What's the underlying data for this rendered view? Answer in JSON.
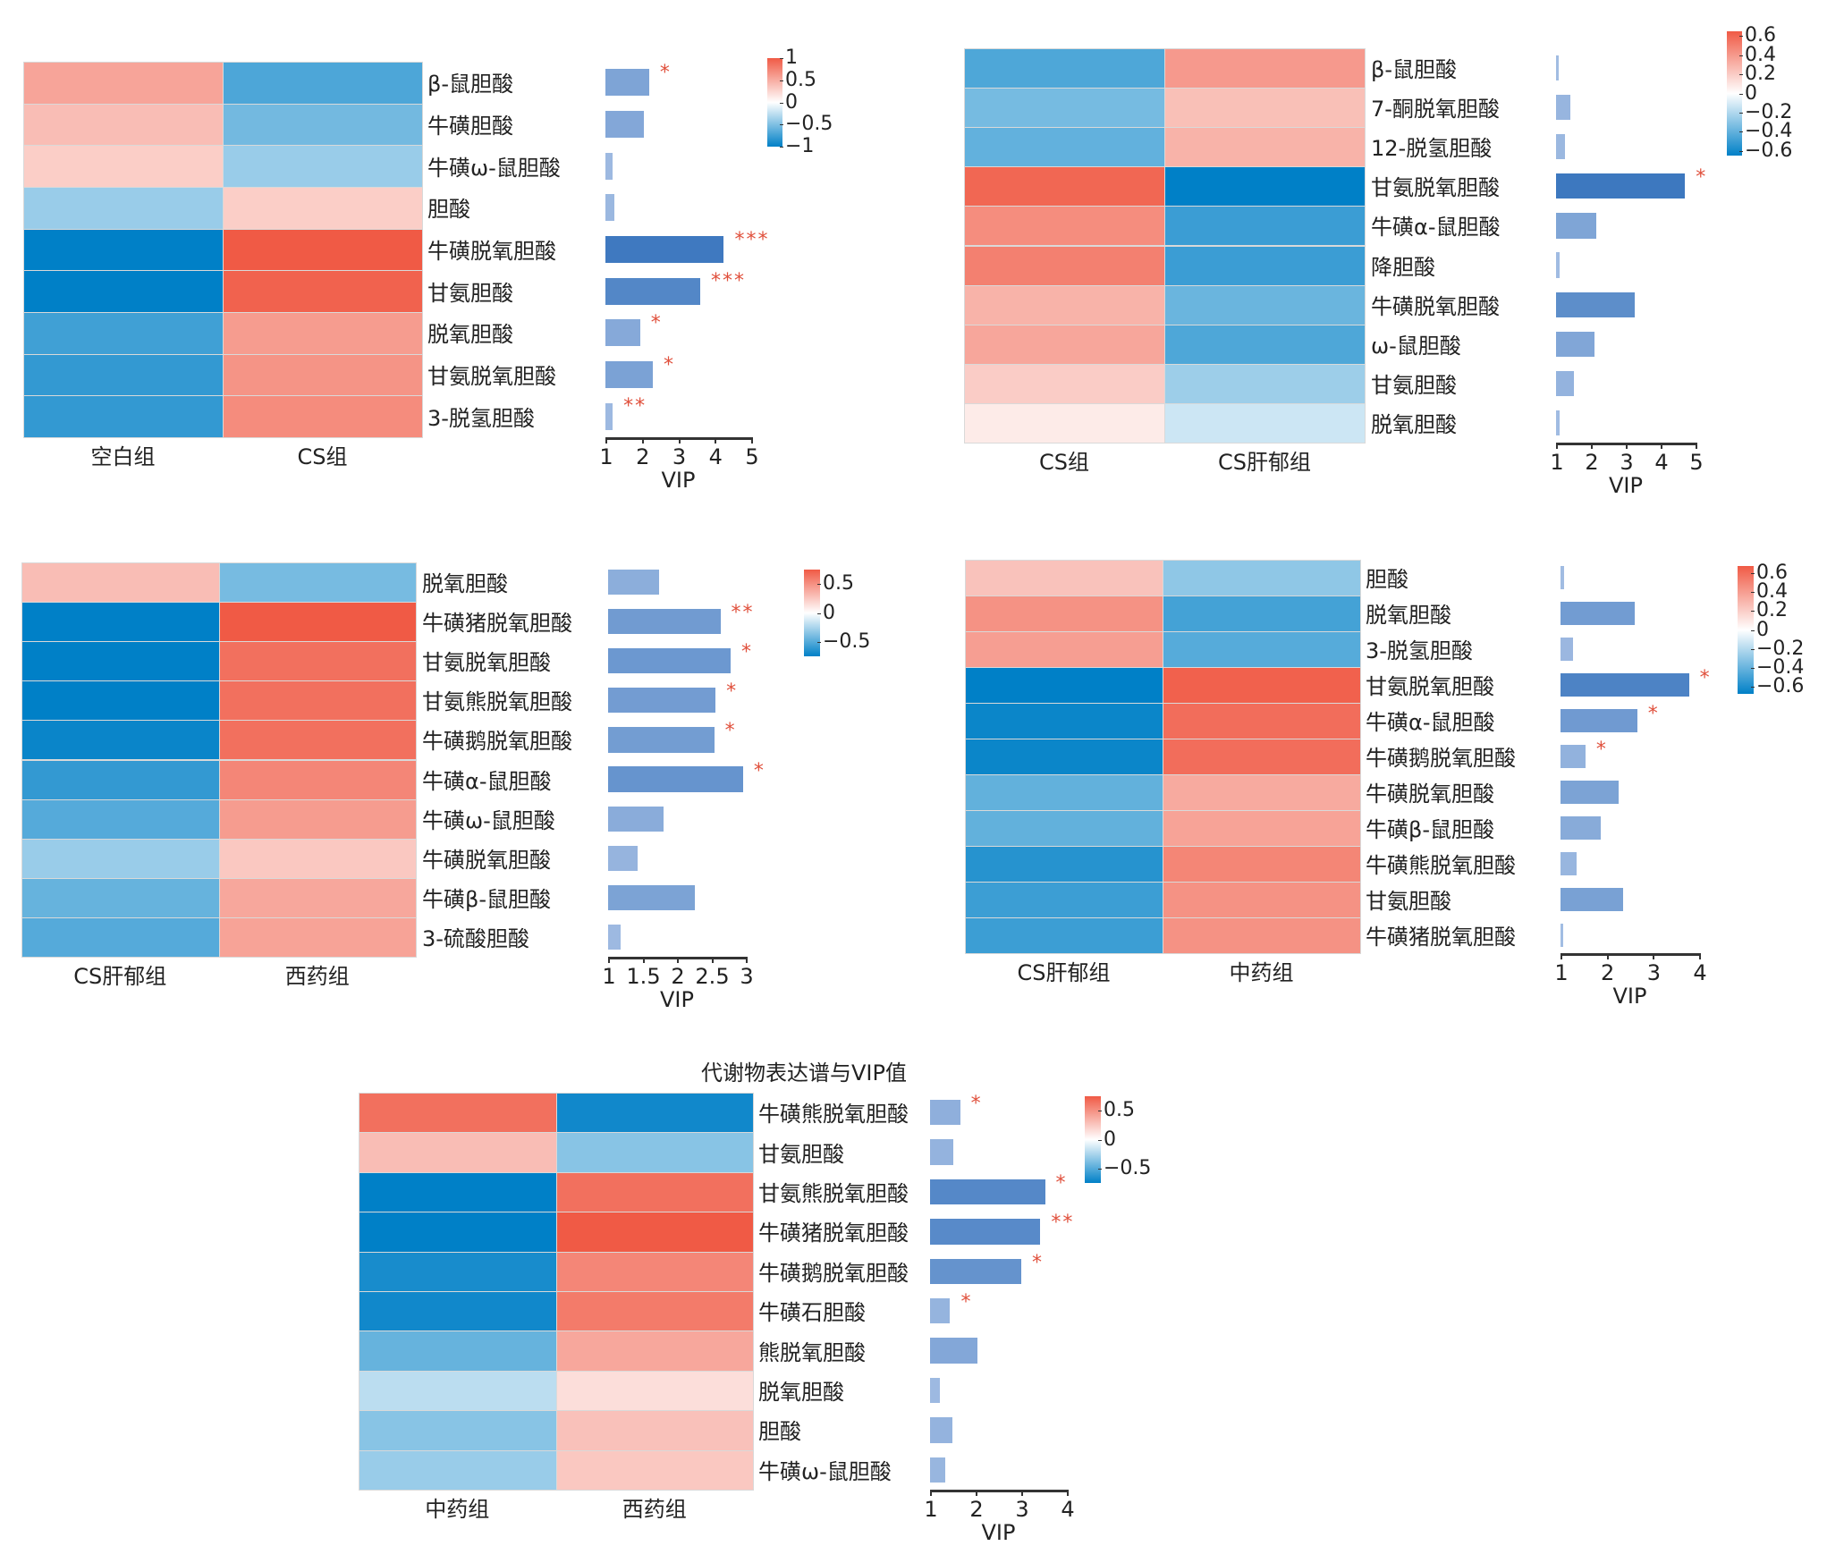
{
  "colors": {
    "high": "#F05A45",
    "mid": "#FFFFFF",
    "low": "#0080C7",
    "bar_light": "#A3BDE3",
    "bar_dark": "#3D78BF",
    "sig": "#E0503C"
  },
  "chart_data": [
    {
      "type": "heatmap",
      "title": "",
      "groups": [
        "空白组",
        "CS组"
      ],
      "colorbar": {
        "min": -1,
        "max": 1,
        "ticks": [
          1,
          0.5,
          0,
          -0.5,
          -1
        ],
        "tick_labels": [
          "1",
          "0.5",
          "0",
          "−0.5",
          "−1"
        ]
      },
      "vip_axis": {
        "label": "VIP",
        "min": 1,
        "max": 5,
        "ticks": [
          "1",
          "2",
          "3",
          "4",
          "5"
        ]
      },
      "rows": [
        {
          "name": "β-鼠胆酸",
          "values": [
            0.55,
            -0.7
          ],
          "vip": 2.2,
          "sig": "*"
        },
        {
          "name": "牛磺胆酸",
          "values": [
            0.4,
            -0.55
          ],
          "vip": 2.05,
          "sig": ""
        },
        {
          "name": "牛磺ω-鼠胆酸",
          "values": [
            0.3,
            -0.4
          ],
          "vip": 1.2,
          "sig": ""
        },
        {
          "name": "胆酸",
          "values": [
            -0.4,
            0.3
          ],
          "vip": 1.25,
          "sig": ""
        },
        {
          "name": "牛磺脱氧胆酸",
          "values": [
            -1,
            1
          ],
          "vip": 4.25,
          "sig": "***"
        },
        {
          "name": "甘氨胆酸",
          "values": [
            -1,
            0.95
          ],
          "vip": 3.6,
          "sig": "***"
        },
        {
          "name": "脱氧胆酸",
          "values": [
            -0.75,
            0.6
          ],
          "vip": 1.95,
          "sig": "*"
        },
        {
          "name": "甘氨脱氧胆酸",
          "values": [
            -0.8,
            0.65
          ],
          "vip": 2.3,
          "sig": "*"
        },
        {
          "name": "3-脱氢胆酸",
          "values": [
            -0.8,
            0.7
          ],
          "vip": 1.2,
          "sig": "**"
        }
      ]
    },
    {
      "type": "heatmap",
      "title": "",
      "groups": [
        "CS组",
        "CS肝郁组"
      ],
      "colorbar": {
        "min": -0.65,
        "max": 0.65,
        "ticks": [
          0.6,
          0.4,
          0.2,
          0,
          -0.2,
          -0.4,
          -0.6
        ],
        "tick_labels": [
          "0.6",
          "0.4",
          "0.2",
          "0",
          "−0.2",
          "−0.4",
          "−0.6"
        ]
      },
      "vip_axis": {
        "label": "VIP",
        "min": 1,
        "max": 5,
        "ticks": [
          "1",
          "2",
          "3",
          "4",
          "5"
        ]
      },
      "rows": [
        {
          "name": "β-鼠胆酸",
          "values": [
            -0.45,
            0.4
          ],
          "vip": 1.05,
          "sig": ""
        },
        {
          "name": "7-酮脱氧胆酸",
          "values": [
            -0.35,
            0.25
          ],
          "vip": 1.4,
          "sig": ""
        },
        {
          "name": "12-脱氢胆酸",
          "values": [
            -0.4,
            0.3
          ],
          "vip": 1.25,
          "sig": ""
        },
        {
          "name": "甘氨脱氧胆酸",
          "values": [
            0.6,
            -0.65
          ],
          "vip": 4.7,
          "sig": "*"
        },
        {
          "name": "牛磺α-鼠胆酸",
          "values": [
            0.45,
            -0.5
          ],
          "vip": 2.15,
          "sig": ""
        },
        {
          "name": "降胆酸",
          "values": [
            0.5,
            -0.5
          ],
          "vip": 1.1,
          "sig": ""
        },
        {
          "name": "牛磺脱氧胆酸",
          "values": [
            0.3,
            -0.38
          ],
          "vip": 3.25,
          "sig": ""
        },
        {
          "name": "ω-鼠胆酸",
          "values": [
            0.35,
            -0.45
          ],
          "vip": 2.1,
          "sig": ""
        },
        {
          "name": "甘氨胆酸",
          "values": [
            0.2,
            -0.25
          ],
          "vip": 1.5,
          "sig": ""
        },
        {
          "name": "脱氧胆酸",
          "values": [
            0.08,
            -0.13
          ],
          "vip": 1.1,
          "sig": ""
        }
      ]
    },
    {
      "type": "heatmap",
      "title": "",
      "groups": [
        "CS肝郁组",
        "西药组"
      ],
      "colorbar": {
        "min": -0.75,
        "max": 0.75,
        "ticks": [
          0.5,
          0,
          -0.5
        ],
        "tick_labels": [
          "0.5",
          "0",
          "−0.5"
        ]
      },
      "vip_axis": {
        "label": "VIP",
        "min": 1,
        "max": 3,
        "ticks": [
          "1",
          "1.5",
          "2",
          "2.5",
          "3"
        ]
      },
      "rows": [
        {
          "name": "脱氧胆酸",
          "values": [
            0.3,
            -0.4
          ],
          "vip": 1.74,
          "sig": ""
        },
        {
          "name": "牛磺猪脱氧胆酸",
          "values": [
            -0.8,
            0.75
          ],
          "vip": 2.63,
          "sig": "**"
        },
        {
          "name": "甘氨脱氧胆酸",
          "values": [
            -0.75,
            0.65
          ],
          "vip": 2.78,
          "sig": "*"
        },
        {
          "name": "甘氨熊脱氧胆酸",
          "values": [
            -0.75,
            0.65
          ],
          "vip": 2.56,
          "sig": "*"
        },
        {
          "name": "牛磺鹅脱氧胆酸",
          "values": [
            -0.72,
            0.65
          ],
          "vip": 2.54,
          "sig": "*"
        },
        {
          "name": "牛磺α-鼠胆酸",
          "values": [
            -0.6,
            0.55
          ],
          "vip": 2.96,
          "sig": "*"
        },
        {
          "name": "牛磺ω-鼠胆酸",
          "values": [
            -0.5,
            0.45
          ],
          "vip": 1.8,
          "sig": ""
        },
        {
          "name": "牛磺脱氧胆酸",
          "values": [
            -0.3,
            0.25
          ],
          "vip": 1.43,
          "sig": ""
        },
        {
          "name": "牛磺β-鼠胆酸",
          "values": [
            -0.45,
            0.4
          ],
          "vip": 2.26,
          "sig": ""
        },
        {
          "name": "3-硫酸胆酸",
          "values": [
            -0.5,
            0.42
          ],
          "vip": 1.18,
          "sig": ""
        }
      ]
    },
    {
      "type": "heatmap",
      "title": "",
      "groups": [
        "CS肝郁组",
        "中药组"
      ],
      "colorbar": {
        "min": -0.68,
        "max": 0.68,
        "ticks": [
          0.6,
          0.4,
          0.2,
          0,
          -0.2,
          -0.4,
          -0.6
        ],
        "tick_labels": [
          "0.6",
          "0.4",
          "0.2",
          "0",
          "−0.2",
          "−0.4",
          "−0.6"
        ]
      },
      "vip_axis": {
        "label": "VIP",
        "min": 1,
        "max": 4,
        "ticks": [
          "1",
          "2",
          "3",
          "4"
        ]
      },
      "rows": [
        {
          "name": "胆酸",
          "values": [
            0.25,
            -0.3
          ],
          "vip": 1.07,
          "sig": ""
        },
        {
          "name": "脱氧胆酸",
          "values": [
            0.45,
            -0.5
          ],
          "vip": 2.6,
          "sig": ""
        },
        {
          "name": "3-脱氢胆酸",
          "values": [
            0.4,
            -0.45
          ],
          "vip": 1.27,
          "sig": ""
        },
        {
          "name": "甘氨脱氧胆酸",
          "values": [
            -0.68,
            0.65
          ],
          "vip": 3.78,
          "sig": "*"
        },
        {
          "name": "牛磺α-鼠胆酸",
          "values": [
            -0.65,
            0.6
          ],
          "vip": 2.66,
          "sig": "*"
        },
        {
          "name": "牛磺鹅脱氧胆酸",
          "values": [
            -0.65,
            0.6
          ],
          "vip": 1.54,
          "sig": "*"
        },
        {
          "name": "牛磺脱氧胆酸",
          "values": [
            -0.42,
            0.35
          ],
          "vip": 2.26,
          "sig": ""
        },
        {
          "name": "牛磺β-鼠胆酸",
          "values": [
            -0.42,
            0.38
          ],
          "vip": 1.88,
          "sig": ""
        },
        {
          "name": "牛磺熊脱氧胆酸",
          "values": [
            -0.58,
            0.5
          ],
          "vip": 1.35,
          "sig": ""
        },
        {
          "name": "甘氨胆酸",
          "values": [
            -0.52,
            0.45
          ],
          "vip": 2.35,
          "sig": ""
        },
        {
          "name": "牛磺猪脱氧胆酸",
          "values": [
            -0.52,
            0.45
          ],
          "vip": 1.02,
          "sig": ""
        }
      ]
    },
    {
      "type": "heatmap",
      "title": "代谢物表达谱与VIP值",
      "groups": [
        "中药组",
        "西药组"
      ],
      "colorbar": {
        "min": -0.75,
        "max": 0.75,
        "ticks": [
          0.5,
          0,
          -0.5
        ],
        "tick_labels": [
          "0.5",
          "0",
          "−0.5"
        ]
      },
      "vip_axis": {
        "label": "VIP",
        "min": 1,
        "max": 4,
        "ticks": [
          "1",
          "2",
          "3",
          "4"
        ]
      },
      "rows": [
        {
          "name": "牛磺熊脱氧胆酸",
          "values": [
            0.65,
            -0.7
          ],
          "vip": 1.66,
          "sig": "*"
        },
        {
          "name": "甘氨胆酸",
          "values": [
            0.3,
            -0.35
          ],
          "vip": 1.5,
          "sig": ""
        },
        {
          "name": "甘氨熊脱氧胆酸",
          "values": [
            -0.75,
            0.65
          ],
          "vip": 3.52,
          "sig": "*"
        },
        {
          "name": "牛磺猪脱氧胆酸",
          "values": [
            -0.8,
            0.75
          ],
          "vip": 3.42,
          "sig": "**"
        },
        {
          "name": "牛磺鹅脱氧胆酸",
          "values": [
            -0.68,
            0.55
          ],
          "vip": 3.0,
          "sig": "*"
        },
        {
          "name": "牛磺石胆酸",
          "values": [
            -0.7,
            0.6
          ],
          "vip": 1.44,
          "sig": "*"
        },
        {
          "name": "熊脱氧胆酸",
          "values": [
            -0.45,
            0.4
          ],
          "vip": 2.03,
          "sig": ""
        },
        {
          "name": "脱氧胆酸",
          "values": [
            -0.2,
            0.15
          ],
          "vip": 1.21,
          "sig": ""
        },
        {
          "name": "胆酸",
          "values": [
            -0.35,
            0.28
          ],
          "vip": 1.49,
          "sig": ""
        },
        {
          "name": "牛磺ω-鼠胆酸",
          "values": [
            -0.3,
            0.25
          ],
          "vip": 1.34,
          "sig": ""
        }
      ]
    }
  ]
}
